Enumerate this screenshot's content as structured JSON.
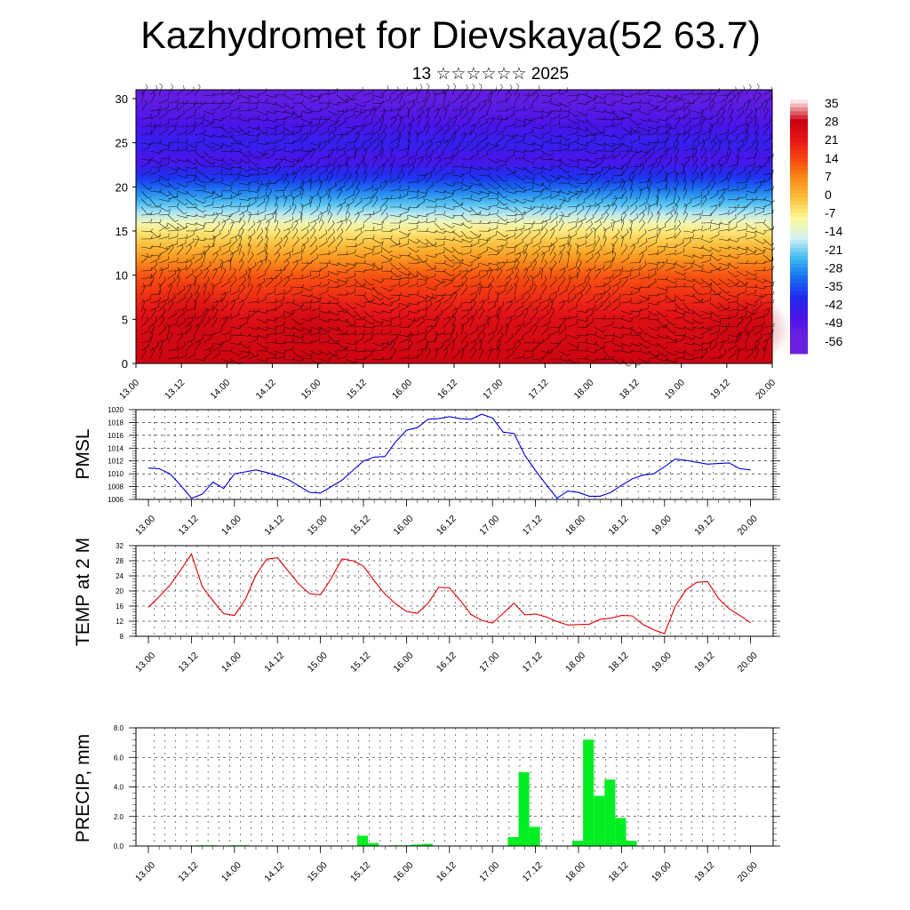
{
  "title": "Kazhydromet for Dievskaya(52 63.7)",
  "subtitle": "13 ☆☆☆☆☆☆ 2025",
  "time_ticks": [
    "13.00",
    "13.12",
    "14.00",
    "14.12",
    "15.00",
    "15.12",
    "16.00",
    "16.12",
    "17.00",
    "17.12",
    "18.00",
    "18.12",
    "19.00",
    "19.12",
    "20.00"
  ],
  "chart_data": [
    {
      "type": "heatmap",
      "title": "",
      "xlabel": "",
      "ylabel": "",
      "ylim": [
        0,
        31
      ],
      "y_ticks": [
        "0",
        "5",
        "10",
        "15",
        "20",
        "25",
        "30"
      ],
      "colorbar_labels": [
        "35",
        "28",
        "21",
        "14",
        "7",
        "0",
        "-7",
        "-14",
        "-21",
        "-28",
        "-35",
        "-42",
        "-49",
        "-56"
      ],
      "colorbar_colors": [
        "#fbe3e3",
        "#c80010",
        "#e81818",
        "#f64a10",
        "#f9901c",
        "#fbc440",
        "#fdfa9c",
        "#d2f0f4",
        "#40bcf0",
        "#1a6ef0",
        "#1e2cf0",
        "#4a14e8",
        "#6a20e0"
      ],
      "profile_c": [
        {
          "alt": 0,
          "temp": 26
        },
        {
          "alt": 5,
          "temp": 22
        },
        {
          "alt": 10,
          "temp": 10
        },
        {
          "alt": 13,
          "temp": -2
        },
        {
          "alt": 15.5,
          "temp": -12
        },
        {
          "alt": 17,
          "temp": -22
        },
        {
          "alt": 19,
          "temp": -32
        },
        {
          "alt": 21,
          "temp": -43
        },
        {
          "alt": 23,
          "temp": -52
        },
        {
          "alt": 25,
          "temp": -48
        },
        {
          "alt": 27,
          "temp": -52
        },
        {
          "alt": 30,
          "temp": -58
        }
      ],
      "overlay": "wind barbs"
    },
    {
      "type": "line",
      "ylabel": "PMSL",
      "ylim": [
        1006,
        1020
      ],
      "y_ticks": [
        "1006",
        "1008",
        "1010",
        "1012",
        "1014",
        "1016",
        "1018",
        "1020"
      ],
      "color": "#0000e0",
      "y": [
        1010.9,
        1010.8,
        1010.0,
        1008.2,
        1006.2,
        1006.8,
        1008.7,
        1007.7,
        1010.0,
        1010.3,
        1010.6,
        1010.2,
        1009.7,
        1009.1,
        1008.1,
        1007.1,
        1007.0,
        1008.0,
        1009.0,
        1010.5,
        1012.0,
        1012.6,
        1012.7,
        1015.0,
        1016.8,
        1017.2,
        1018.5,
        1018.6,
        1018.9,
        1018.6,
        1018.5,
        1019.3,
        1018.7,
        1016.5,
        1016.3,
        1012.9,
        1010.5,
        1008.3,
        1006.2,
        1007.3,
        1007.1,
        1006.5,
        1006.5,
        1007.1,
        1008.2,
        1009.2,
        1009.8,
        1010.0,
        1011.1,
        1012.3,
        1012.1,
        1011.8,
        1011.5,
        1011.6,
        1011.7,
        1010.8,
        1010.6
      ]
    },
    {
      "type": "line",
      "ylabel": "TEMP at 2 M",
      "ylim": [
        8,
        32
      ],
      "y_ticks": [
        "8",
        "12",
        "16",
        "20",
        "24",
        "28",
        "32"
      ],
      "color": "#e00000",
      "y": [
        15.7,
        18.5,
        21.5,
        25.5,
        29.8,
        21.2,
        17.4,
        14.0,
        13.5,
        17.7,
        24.2,
        28.4,
        28.8,
        25.3,
        21.8,
        19.3,
        19.0,
        23.3,
        28.5,
        28.0,
        26.6,
        22.7,
        19.2,
        16.6,
        14.6,
        14.1,
        16.7,
        21.0,
        20.8,
        17.5,
        13.8,
        12.2,
        11.5,
        14.1,
        16.8,
        13.7,
        13.9,
        13.1,
        11.9,
        11.0,
        11.1,
        11.2,
        12.5,
        12.8,
        13.5,
        13.4,
        11.1,
        9.7,
        8.7,
        16.0,
        20.3,
        22.3,
        22.5,
        18.1,
        15.3,
        13.5,
        11.6
      ]
    },
    {
      "type": "bar",
      "ylabel": "PRECIP, mm",
      "ylim": [
        0,
        8
      ],
      "y_ticks": [
        "0.0",
        "2.0",
        "4.0",
        "6.0",
        "8.0"
      ],
      "color": "#00ee22",
      "values": [
        0,
        0,
        0,
        0,
        0,
        0.05,
        0.05,
        0,
        0.05,
        0.05,
        0,
        0,
        0,
        0,
        0,
        0,
        0,
        0,
        0,
        0,
        0.7,
        0.2,
        0,
        0.05,
        0.05,
        0.1,
        0.15,
        0,
        0,
        0,
        0,
        0,
        0,
        0,
        0.6,
        5.0,
        1.3,
        0,
        0,
        0,
        0.35,
        7.2,
        3.4,
        4.5,
        1.9,
        0.35,
        0,
        0,
        0,
        0,
        0,
        0,
        0,
        0,
        0,
        0,
        0
      ]
    }
  ]
}
